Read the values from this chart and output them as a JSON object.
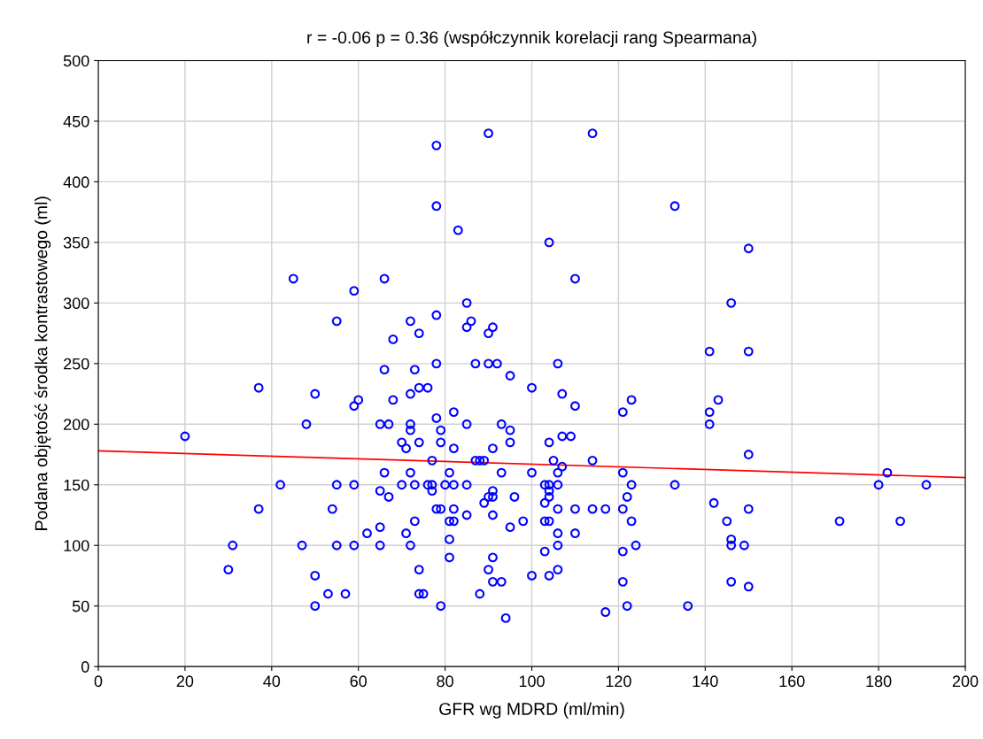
{
  "chart_data": {
    "type": "scatter",
    "title": "r = -0.06 p = 0.36 (współczynnik korelacji rang Spearmana)",
    "xlabel": "GFR wg MDRD (ml/min)",
    "ylabel": "Podana objętość środka kontrastowego (ml)",
    "xlim": [
      0,
      200
    ],
    "xticks": [
      0,
      20,
      40,
      60,
      80,
      100,
      120,
      140,
      160,
      180,
      200
    ],
    "ylim": [
      0,
      500
    ],
    "yticks": [
      0,
      50,
      100,
      150,
      200,
      250,
      300,
      350,
      400,
      450,
      500
    ],
    "grid": true,
    "marker": "circle",
    "series": [
      {
        "color": "#0000ff",
        "x": [
          20,
          30,
          31,
          37,
          37,
          42,
          45,
          47,
          48,
          50,
          50,
          50,
          53,
          54,
          55,
          55,
          55,
          57,
          59,
          59,
          59,
          59,
          60,
          62,
          65,
          65,
          65,
          65,
          66,
          66,
          66,
          67,
          67,
          68,
          68,
          70,
          70,
          71,
          71,
          72,
          72,
          72,
          72,
          72,
          72,
          73,
          73,
          73,
          74,
          74,
          74,
          74,
          74,
          75,
          76,
          76,
          77,
          77,
          77,
          78,
          78,
          78,
          78,
          78,
          78,
          79,
          79,
          79,
          79,
          80,
          81,
          81,
          81,
          81,
          82,
          82,
          82,
          82,
          82,
          83,
          85,
          85,
          85,
          85,
          85,
          86,
          87,
          87,
          88,
          88,
          89,
          89,
          90,
          90,
          90,
          90,
          90,
          91,
          91,
          91,
          91,
          91,
          91,
          91,
          92,
          93,
          93,
          93,
          94,
          95,
          95,
          95,
          95,
          96,
          98,
          100,
          100,
          100,
          103,
          103,
          103,
          103,
          104,
          104,
          104,
          104,
          104,
          104,
          104,
          105,
          106,
          106,
          106,
          106,
          106,
          106,
          106,
          107,
          107,
          107,
          109,
          110,
          110,
          110,
          110,
          114,
          114,
          114,
          117,
          117,
          121,
          121,
          121,
          121,
          121,
          122,
          122,
          123,
          123,
          123,
          124,
          133,
          133,
          136,
          141,
          141,
          141,
          142,
          143,
          145,
          146,
          146,
          146,
          146,
          149,
          150,
          150,
          150,
          150,
          150,
          171,
          180,
          182,
          185,
          191
        ],
        "values": [
          190,
          80,
          100,
          230,
          130,
          150,
          320,
          100,
          200,
          225,
          75,
          50,
          60,
          130,
          285,
          150,
          100,
          60,
          310,
          215,
          150,
          100,
          220,
          110,
          200,
          145,
          115,
          100,
          320,
          245,
          160,
          200,
          140,
          270,
          220,
          185,
          150,
          180,
          110,
          285,
          225,
          200,
          195,
          160,
          100,
          245,
          150,
          120,
          275,
          230,
          185,
          80,
          60,
          60,
          230,
          150,
          170,
          150,
          145,
          430,
          380,
          290,
          250,
          205,
          130,
          195,
          185,
          130,
          50,
          150,
          160,
          120,
          105,
          90,
          210,
          180,
          150,
          130,
          120,
          360,
          300,
          280,
          200,
          150,
          125,
          285,
          250,
          170,
          170,
          60,
          135,
          170,
          440,
          275,
          250,
          140,
          80,
          280,
          180,
          145,
          140,
          125,
          90,
          70,
          250,
          200,
          160,
          70,
          40,
          240,
          195,
          185,
          115,
          140,
          120,
          230,
          160,
          75,
          150,
          135,
          120,
          95,
          350,
          185,
          150,
          145,
          140,
          120,
          75,
          170,
          250,
          160,
          150,
          130,
          110,
          100,
          80,
          225,
          190,
          165,
          190,
          320,
          215,
          130,
          110,
          440,
          170,
          130,
          130,
          45,
          210,
          160,
          130,
          95,
          70,
          140,
          50,
          220,
          150,
          120,
          100,
          380,
          150,
          50,
          260,
          210,
          200,
          135,
          220,
          120,
          300,
          105,
          100,
          70,
          100,
          345,
          260,
          175,
          130,
          66,
          120,
          150,
          160,
          120,
          150
        ]
      },
      {
        "type": "line",
        "color": "#ff0000",
        "marker": "none",
        "x": [
          0,
          200
        ],
        "values": [
          178,
          156
        ]
      }
    ]
  }
}
